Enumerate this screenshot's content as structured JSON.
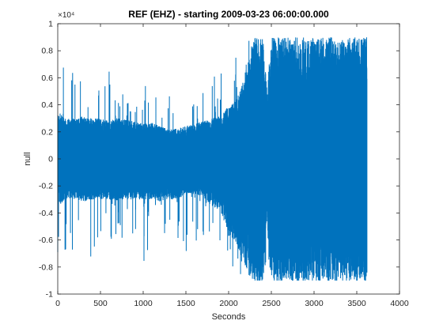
{
  "chart_data": {
    "type": "line",
    "title": "REF (EHZ) - starting 2009-03-23 06:00:00.000",
    "xlabel": "Seconds",
    "ylabel": "null",
    "xlim": [
      0,
      4000
    ],
    "ylim": [
      -10000,
      10000
    ],
    "y_exponent_label": "×10⁴",
    "x_ticks": [
      "0",
      "500",
      "1000",
      "1500",
      "2000",
      "2500",
      "3000",
      "3500",
      "4000"
    ],
    "y_ticks": [
      "-1",
      "-0.8",
      "-0.6",
      "-0.4",
      "-0.2",
      "0",
      "0.2",
      "0.4",
      "0.6",
      "0.8",
      "1"
    ],
    "grid": false,
    "line_color": "#0072BD",
    "series": [
      {
        "x": [
          0,
          100,
          200,
          300,
          400,
          500,
          600,
          700,
          800,
          900,
          1000,
          1100,
          1200,
          1300,
          1400,
          1500,
          1600,
          1700,
          1800,
          1900,
          2000,
          2100,
          2200,
          2300,
          2400,
          2450,
          2500,
          2600,
          2700,
          2800,
          2900,
          3000,
          3100,
          3200,
          3300,
          3400,
          3500,
          3600
        ],
        "envelope_upper": [
          3500,
          3000,
          3000,
          3200,
          3000,
          3000,
          2800,
          3000,
          2900,
          2800,
          2600,
          2700,
          2400,
          2200,
          2300,
          2400,
          2600,
          2800,
          3000,
          3200,
          4000,
          4500,
          6500,
          8800,
          8800,
          5000,
          8800,
          8800,
          8800,
          8800,
          8800,
          8800,
          8800,
          8800,
          8800,
          8800,
          8800,
          8800
        ],
        "envelope_lower": [
          -3500,
          -3000,
          -3000,
          -3200,
          -3000,
          -3000,
          -3000,
          -3100,
          -3000,
          -3000,
          -3000,
          -3000,
          -3200,
          -3000,
          -3000,
          -2600,
          -2600,
          -2800,
          -3500,
          -3800,
          -5500,
          -6500,
          -8000,
          -9000,
          -9000,
          -5000,
          -9000,
          -9000,
          -9000,
          -9000,
          -9000,
          -9000,
          -9000,
          -9000,
          -9000,
          -9000,
          -9000,
          -9000
        ],
        "spike_upper": [
          9200,
          7000,
          6500,
          5500,
          6200,
          5000,
          7200,
          5500,
          4800,
          6200,
          6000,
          5200,
          4200,
          5000,
          4600,
          3500,
          4500,
          5500,
          7200,
          6200,
          7500,
          8500,
          9000,
          9000,
          9000,
          6000,
          9000,
          9000,
          9000,
          9000,
          9000,
          9000,
          9000,
          9000,
          9000,
          9000,
          9000,
          9000
        ],
        "spike_lower": [
          -8500,
          -7500,
          -7000,
          -6500,
          -7500,
          -6800,
          -6800,
          -6500,
          -6000,
          -6500,
          -8800,
          -6500,
          -6200,
          -6500,
          -6000,
          -9000,
          -6000,
          -6500,
          -6500,
          -6800,
          -7500,
          -8500,
          -9000,
          -9000,
          -9000,
          -7000,
          -9000,
          -9000,
          -9000,
          -9000,
          -9000,
          -9000,
          -9000,
          -9000,
          -9000,
          -9000,
          -9000,
          -9000
        ],
        "end_seconds": 3620
      }
    ]
  }
}
